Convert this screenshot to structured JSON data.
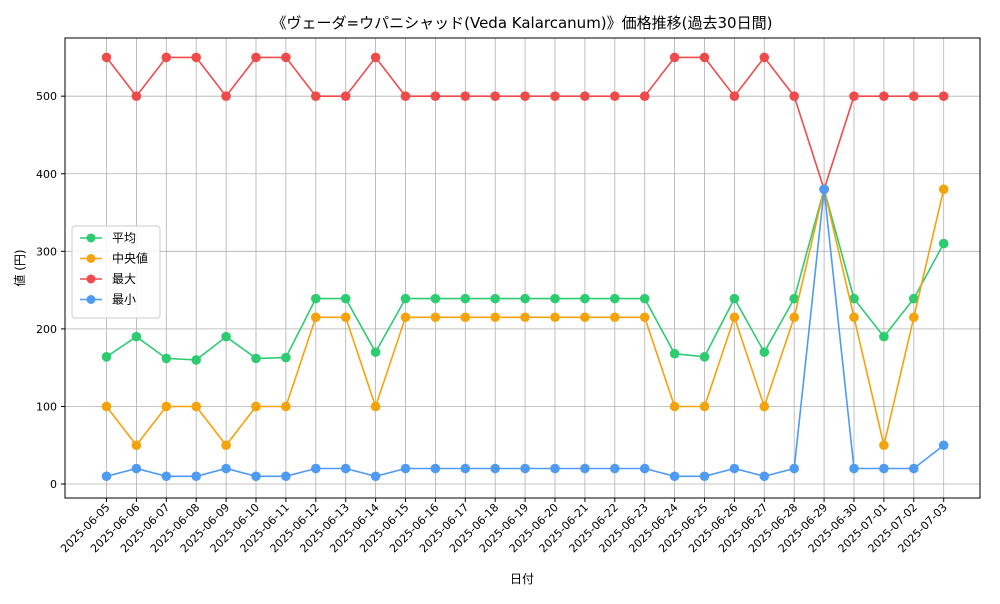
{
  "chart_data": {
    "type": "line",
    "title": "《ヴェーダ=ウパニシャッド(Veda Kalarcanum)》価格推移(過去30日間)",
    "xlabel": "日付",
    "ylabel": "値 (円)",
    "ylim": [
      -18,
      575
    ],
    "yticks": [
      0,
      100,
      200,
      300,
      400,
      500
    ],
    "grid": true,
    "legend_position": "center-left",
    "categories": [
      "2025-06-05",
      "2025-06-06",
      "2025-06-07",
      "2025-06-08",
      "2025-06-09",
      "2025-06-10",
      "2025-06-11",
      "2025-06-12",
      "2025-06-13",
      "2025-06-14",
      "2025-06-15",
      "2025-06-16",
      "2025-06-17",
      "2025-06-18",
      "2025-06-19",
      "2025-06-20",
      "2025-06-21",
      "2025-06-22",
      "2025-06-23",
      "2025-06-24",
      "2025-06-25",
      "2025-06-26",
      "2025-06-27",
      "2025-06-28",
      "2025-06-29",
      "2025-06-30",
      "2025-07-01",
      "2025-07-02",
      "2025-07-03"
    ],
    "series": [
      {
        "name": "平均",
        "color": "#2ecc71",
        "values": [
          164,
          190,
          162,
          160,
          190,
          162,
          163,
          239,
          239,
          170,
          239,
          239,
          239,
          239,
          239,
          239,
          239,
          239,
          239,
          168,
          164,
          239,
          170,
          239,
          380,
          239,
          190,
          239,
          310
        ]
      },
      {
        "name": "中央値",
        "color": "#f5a30a",
        "values": [
          100,
          50,
          100,
          100,
          50,
          100,
          100,
          215,
          215,
          100,
          215,
          215,
          215,
          215,
          215,
          215,
          215,
          215,
          215,
          100,
          100,
          215,
          100,
          215,
          380,
          215,
          50,
          215,
          380
        ]
      },
      {
        "name": "最大",
        "color": "#ef4b4b",
        "values": [
          550,
          500,
          550,
          550,
          500,
          550,
          550,
          500,
          500,
          550,
          500,
          500,
          500,
          500,
          500,
          500,
          500,
          500,
          500,
          550,
          550,
          500,
          550,
          500,
          380,
          500,
          500,
          500,
          500
        ]
      },
      {
        "name": "最小",
        "color": "#4f9af3",
        "values": [
          10,
          20,
          10,
          10,
          20,
          10,
          10,
          20,
          20,
          10,
          20,
          20,
          20,
          20,
          20,
          20,
          20,
          20,
          20,
          10,
          10,
          20,
          10,
          20,
          380,
          20,
          20,
          20,
          50
        ]
      }
    ]
  }
}
